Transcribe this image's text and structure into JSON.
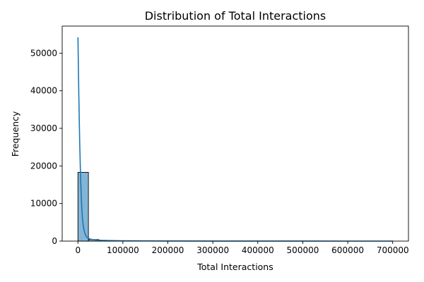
{
  "chart_data": {
    "type": "bar",
    "title": "Distribution of Total Interactions",
    "xlabel": "Total Interactions",
    "ylabel": "Frequency",
    "xlim": [
      -35000,
      735000
    ],
    "ylim": [
      0,
      57200
    ],
    "x_ticks": [
      0,
      100000,
      200000,
      300000,
      400000,
      500000,
      600000,
      700000
    ],
    "y_ticks": [
      0,
      10000,
      20000,
      30000,
      40000,
      50000
    ],
    "bin_edges": [
      0,
      23333,
      46667,
      70000,
      93333,
      116667,
      140000,
      163333,
      186667,
      210000,
      233333,
      256667,
      280000,
      303333,
      326667,
      350000,
      373333,
      396667,
      420000,
      443333,
      466667,
      490000,
      513333,
      536667,
      560000,
      583333,
      606667,
      630000,
      653333,
      676667,
      700000
    ],
    "histogram_counts": [
      18300,
      420,
      120,
      60,
      40,
      25,
      20,
      15,
      12,
      10,
      8,
      7,
      6,
      5,
      4,
      4,
      3,
      3,
      3,
      2,
      2,
      2,
      2,
      2,
      1,
      1,
      1,
      1,
      1,
      1
    ],
    "kde": {
      "x": [
        0,
        2000,
        4000,
        6000,
        8000,
        10000,
        12000,
        14000,
        16000,
        18000,
        20000,
        25000,
        30000,
        40000,
        50000,
        70000,
        100000,
        150000,
        200000,
        300000,
        400000,
        500000,
        600000,
        700000
      ],
      "y": [
        54200,
        39000,
        26000,
        16500,
        10000,
        6200,
        4000,
        2700,
        1900,
        1400,
        1000,
        650,
        450,
        300,
        220,
        150,
        100,
        60,
        40,
        25,
        15,
        10,
        8,
        5
      ]
    },
    "bar_color": "#5b9cc8",
    "bar_edge": "#000000",
    "line_color": "#1f77b4"
  }
}
